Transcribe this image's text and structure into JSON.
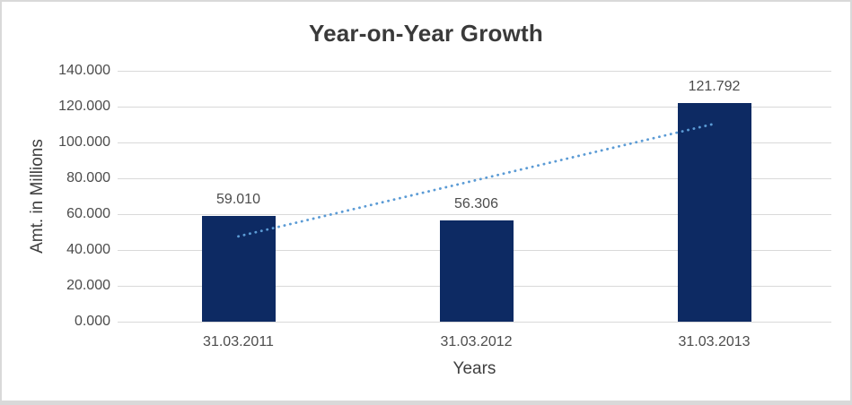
{
  "chart_data": {
    "type": "bar",
    "title": "Year-on-Year Growth",
    "xlabel": "Years",
    "ylabel": "Amt. in Millions",
    "categories": [
      "31.03.2011",
      "31.03.2012",
      "31.03.2013"
    ],
    "values": [
      59.01,
      56.306,
      121.792
    ],
    "value_labels": [
      "59.010",
      "56.306",
      "121.792"
    ],
    "ylim": [
      0,
      140
    ],
    "ytick_step": 20,
    "ytick_labels": [
      "0.000",
      "20.000",
      "40.000",
      "60.000",
      "80.000",
      "100.000",
      "120.000",
      "140.000"
    ],
    "grid": true,
    "legend": "none",
    "trendline": {
      "type": "linear",
      "style": "dotted",
      "start_value": 47.6,
      "end_value": 110.4
    },
    "colors": {
      "bar": "#0d2a63",
      "trendline": "#5b9bd5",
      "gridline": "#d9d9d9",
      "text": "#4c4c4c",
      "axis_title_text": "#404040",
      "title_text": "#3a3a3a"
    }
  }
}
